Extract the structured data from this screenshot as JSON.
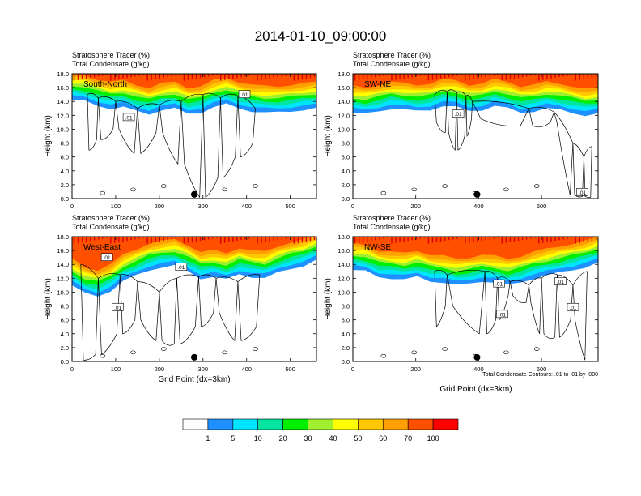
{
  "figure": {
    "title": "2014-01-10_09:00:00",
    "contour_note": "Total Condensate Contours: .01 to .01 by .000",
    "contour_label": ".01"
  },
  "colorbar": {
    "labels": [
      "1",
      "5",
      "10",
      "20",
      "30",
      "40",
      "50",
      "60",
      "70",
      "100"
    ],
    "colors": [
      "#ffffff",
      "#1e90ff",
      "#00e5ff",
      "#00e6a0",
      "#00ee00",
      "#a0f030",
      "#ffff00",
      "#ffc800",
      "#ffa000",
      "#ff5000",
      "#ff0000"
    ]
  },
  "chart_data": [
    {
      "type": "heatmap",
      "name": "South-North",
      "subtitle_lines": [
        "Stratosphere Tracer   (%)",
        "Total Condensate   (g/kg)"
      ],
      "xlabel": "",
      "ylabel": "Height (km)",
      "xlim": [
        0,
        560
      ],
      "ylim": [
        0,
        18
      ],
      "xticks": [
        "0",
        "100",
        "200",
        "300",
        "400",
        "500"
      ],
      "xtick_values": [
        0,
        100,
        200,
        300,
        400,
        500
      ],
      "yticks": [
        "0.0",
        "2.0",
        "4.0",
        "6.0",
        "8.0",
        "10.0",
        "12.0",
        "14.0",
        "16.0",
        "18.0"
      ],
      "marker_x": 280,
      "tracer_base_km": [
        14.2,
        14.0,
        13.4,
        13.0,
        13.2,
        12.6,
        12.2,
        12.8,
        13.0,
        12.2,
        12.4,
        13.2,
        13.6,
        13.0,
        12.6,
        12.4,
        12.4,
        12.6,
        12.8,
        13.0
      ],
      "contour_x": [
        35,
        60,
        100,
        150,
        200,
        250,
        300,
        340,
        380,
        420
      ],
      "contour_top_km": [
        15.0,
        14.5,
        14.0,
        13.0,
        13.5,
        14.0,
        15.0,
        14.5,
        14.8,
        13.0
      ],
      "contour_bottom_km": [
        7.0,
        8.5,
        10.0,
        6.5,
        9.5,
        5.0,
        0.2,
        3.0,
        6.0,
        8.0
      ],
      "label_x": [
        130,
        395
      ],
      "label_km": [
        11.7,
        15.0
      ]
    },
    {
      "type": "heatmap",
      "name": "SW-NE",
      "subtitle_lines": [
        "Stratosphere Tracer   (%)",
        "Total Condensate   (g/kg)"
      ],
      "xlabel": "",
      "ylabel": "Height (km)",
      "xlim": [
        0,
        780
      ],
      "ylim": [
        0,
        18
      ],
      "xticks": [
        "0",
        "200",
        "400",
        "600"
      ],
      "xtick_values": [
        0,
        200,
        400,
        600
      ],
      "yticks": [
        "0.0",
        "2.0",
        "4.0",
        "6.0",
        "8.0",
        "10.0",
        "12.0",
        "14.0",
        "16.0",
        "18.0"
      ],
      "marker_x": 395,
      "tracer_base_km": [
        12.4,
        12.2,
        12.6,
        13.0,
        12.8,
        12.6,
        12.8,
        13.4,
        13.2,
        12.6,
        12.8,
        13.4,
        13.0,
        12.4,
        12.6,
        13.0,
        12.8,
        12.4,
        12.0,
        12.2
      ],
      "contour_x": [
        260,
        300,
        330,
        360,
        380,
        560,
        640,
        700,
        735,
        760
      ],
      "contour_top_km": [
        15.0,
        15.4,
        15.2,
        14.8,
        14.0,
        13.0,
        12.5,
        8.0,
        6.0,
        7.5
      ],
      "contour_bottom_km": [
        11.0,
        9.5,
        7.0,
        9.0,
        11.5,
        10.5,
        11.0,
        0.5,
        0.3,
        0.2
      ],
      "label_x": [
        335,
        730
      ],
      "label_km": [
        12.2,
        0.9
      ]
    },
    {
      "type": "heatmap",
      "name": "West-East",
      "subtitle_lines": [
        "Stratosphere Tracer   (%)",
        "Total Condensate   (g/kg)"
      ],
      "xlabel": "Grid Point (dx=3km)",
      "ylabel": "Height (km)",
      "xlim": [
        0,
        560
      ],
      "ylim": [
        0,
        18
      ],
      "xticks": [
        "0",
        "100",
        "200",
        "300",
        "400",
        "500"
      ],
      "xtick_values": [
        0,
        100,
        200,
        300,
        400,
        500
      ],
      "yticks": [
        "0.0",
        "2.0",
        "4.0",
        "6.0",
        "8.0",
        "10.0",
        "12.0",
        "14.0",
        "16.0",
        "18.0"
      ],
      "marker_x": 280,
      "tracer_base_km": [
        11.0,
        9.8,
        9.4,
        10.2,
        11.6,
        12.4,
        13.2,
        13.6,
        13.8,
        13.0,
        12.0,
        12.2,
        11.8,
        12.6,
        12.2,
        12.0,
        12.8,
        13.4,
        13.8,
        14.6
      ],
      "contour_x": [
        20,
        60,
        110,
        150,
        200,
        240,
        290,
        330,
        380,
        430
      ],
      "contour_top_km": [
        14.0,
        12.0,
        12.5,
        11.5,
        10.0,
        12.0,
        12.2,
        12.0,
        11.5,
        12.5
      ],
      "contour_bottom_km": [
        0.2,
        1.0,
        4.0,
        6.0,
        3.0,
        2.5,
        5.0,
        7.0,
        3.0,
        5.0
      ],
      "label_x": [
        80,
        250,
        105
      ],
      "label_km": [
        15.0,
        13.6,
        7.8
      ]
    },
    {
      "type": "heatmap",
      "name": "NW-SE",
      "subtitle_lines": [
        "Stratosphere Tracer   (%)",
        "Total Condensate   (g/kg)"
      ],
      "xlabel": "Grid Point (dx=3km)",
      "ylabel": "Height (km)",
      "xlim": [
        0,
        780
      ],
      "ylim": [
        0,
        18
      ],
      "xticks": [
        "0",
        "200",
        "400",
        "600"
      ],
      "xtick_values": [
        0,
        200,
        400,
        600
      ],
      "yticks": [
        "0.0",
        "2.0",
        "4.0",
        "6.0",
        "8.0",
        "10.0",
        "12.0",
        "14.0",
        "16.0",
        "18.0"
      ],
      "marker_x": 395,
      "tracer_base_km": [
        13.2,
        13.0,
        12.2,
        12.0,
        11.8,
        12.2,
        11.6,
        11.4,
        11.0,
        11.2,
        11.6,
        11.4,
        11.0,
        11.4,
        12.0,
        12.4,
        12.8,
        13.2,
        13.6,
        14.2
      ],
      "contour_x": [
        260,
        300,
        420,
        460,
        500,
        560,
        600,
        650,
        700,
        745
      ],
      "contour_top_km": [
        13.0,
        12.5,
        13.0,
        12.0,
        11.5,
        11.0,
        12.0,
        12.5,
        11.0,
        13.0
      ],
      "contour_bottom_km": [
        5.0,
        8.0,
        4.0,
        6.0,
        9.5,
        8.5,
        4.0,
        3.5,
        6.0,
        0.2
      ],
      "label_x": [
        465,
        475,
        660,
        700
      ],
      "label_km": [
        11.2,
        6.8,
        11.5,
        7.8
      ]
    }
  ]
}
